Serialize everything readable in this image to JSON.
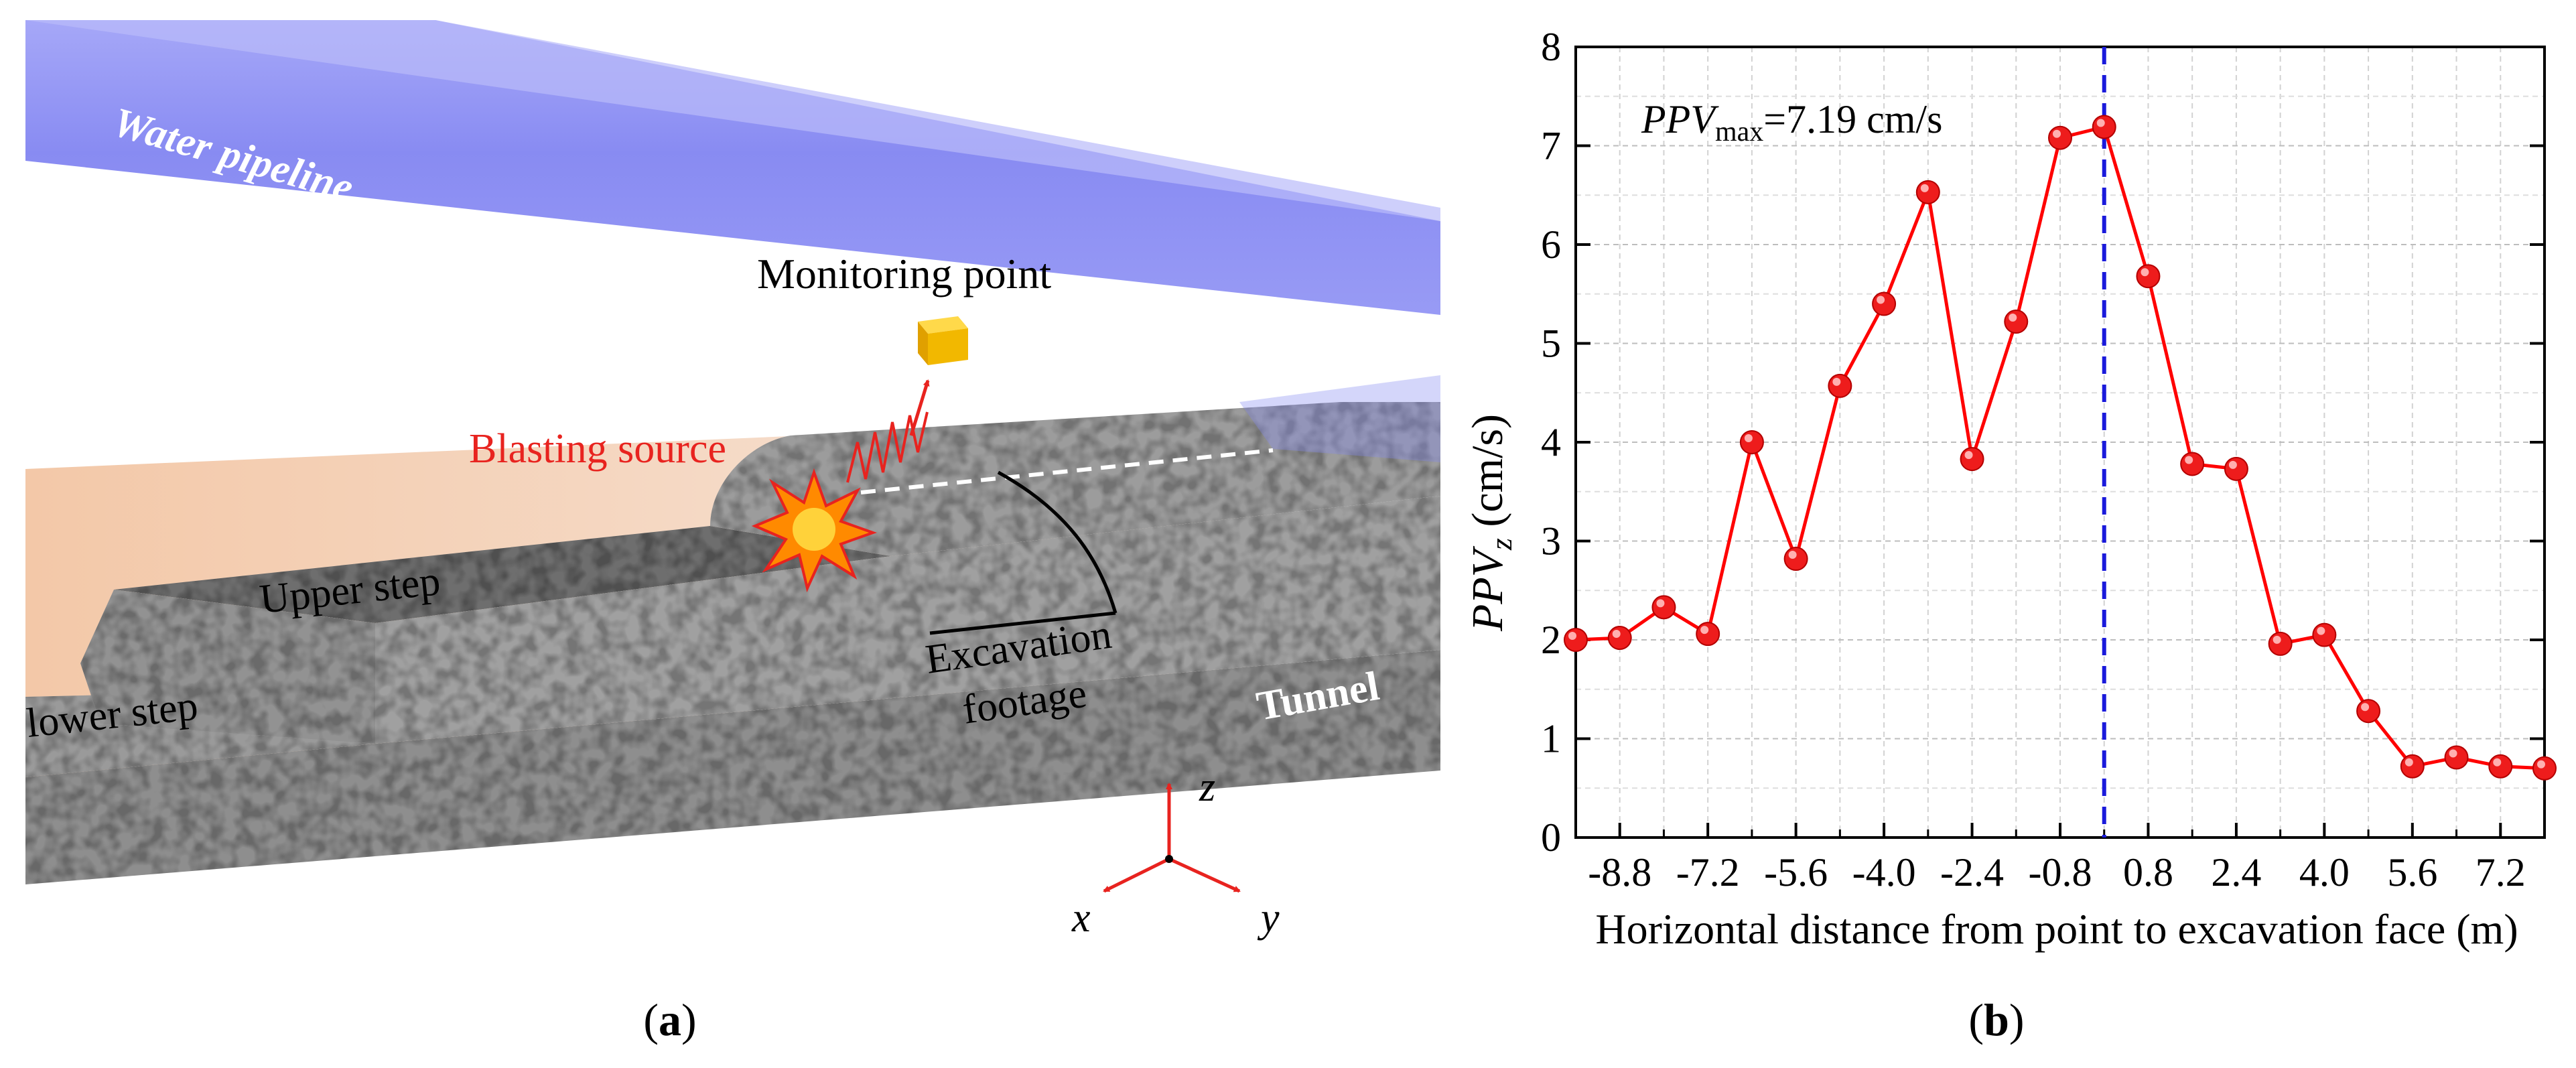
{
  "panel_a": {
    "caption": "(a)",
    "labels": {
      "water_pipeline": "Water pipeline",
      "monitoring_point": "Monitoring point",
      "blasting_source": "Blasting source",
      "upper_step": "Upper step",
      "lower_step": "lower step",
      "excavation_line1": "Excavation",
      "excavation_line2": "footage",
      "tunnel": "Tunnel"
    },
    "axes": {
      "x": "x",
      "y": "y",
      "z": "z"
    },
    "colors": {
      "pipeline": "#7b7ef0",
      "blast": "#e8231f",
      "rock": "#8a8a8a",
      "cube": "#f2b800"
    }
  },
  "panel_b": {
    "caption": "(b)",
    "annotation": {
      "prefix": "PPV",
      "subscript": "max",
      "suffix": "=7.19 cm/s"
    },
    "ylabel_main": "PPV",
    "ylabel_sub": "z",
    "ylabel_unit": " (cm/s)",
    "xlabel": "Horizontal distance from point to excavation face (m)"
  },
  "chart_data": {
    "type": "line",
    "xlabel": "Horizontal distance from point to excavation face (m)",
    "ylabel": "PPVz (cm/s)",
    "xlim": [
      -9.6,
      8.0
    ],
    "ylim": [
      0,
      8
    ],
    "xticks": [
      -8.8,
      -7.2,
      -5.6,
      -4.0,
      -2.4,
      -0.8,
      0.8,
      2.4,
      4.0,
      5.6,
      7.2
    ],
    "xtick_labels": [
      "-8.8",
      "-7.2",
      "-5.6",
      "-4.0",
      "-2.4",
      "-0.8",
      "0.8",
      "2.4",
      "4.0",
      "5.6",
      "7.2"
    ],
    "yticks": [
      0,
      1,
      2,
      3,
      4,
      5,
      6,
      7,
      8
    ],
    "ytick_labels": [
      "0",
      "1",
      "2",
      "3",
      "4",
      "5",
      "6",
      "7",
      "8"
    ],
    "grid": true,
    "series": [
      {
        "name": "PPVz",
        "color": "#ff0000",
        "x": [
          -9.6,
          -8.8,
          -8.0,
          -7.2,
          -6.4,
          -5.6,
          -4.8,
          -4.0,
          -3.2,
          -2.4,
          -1.6,
          -0.8,
          0.0,
          0.8,
          1.6,
          2.4,
          3.2,
          4.0,
          4.8,
          5.6,
          6.4,
          7.2,
          8.0
        ],
        "values": [
          2.0,
          2.02,
          2.33,
          2.06,
          4.0,
          2.82,
          4.57,
          5.4,
          6.53,
          3.83,
          5.22,
          7.08,
          7.19,
          5.68,
          3.78,
          3.73,
          1.96,
          2.05,
          1.28,
          0.72,
          0.81,
          0.72,
          0.7
        ]
      }
    ],
    "reference_line": {
      "x": 0.0,
      "color": "#1a1adb",
      "style": "dashed"
    }
  }
}
